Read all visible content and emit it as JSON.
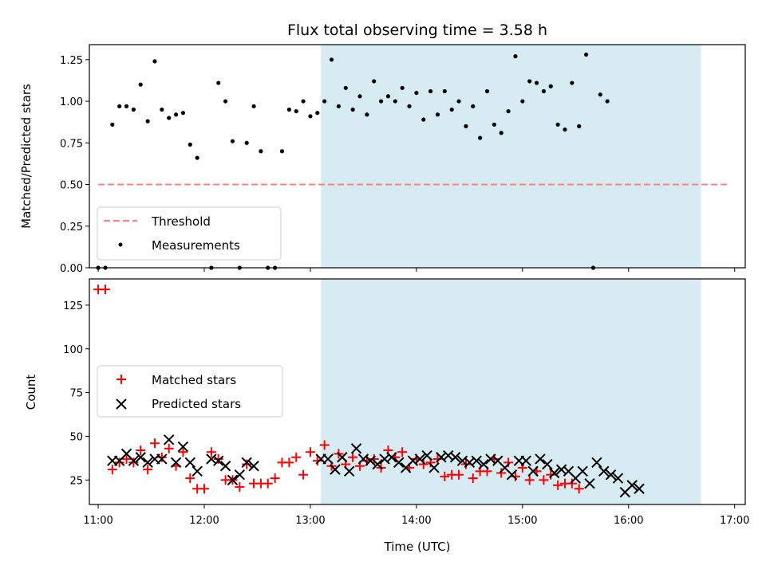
{
  "title": "Flux total observing time = 3.58 h",
  "xlabel": "Time (UTC)",
  "x_ticks": [
    "11:00",
    "12:00",
    "13:00",
    "14:00",
    "15:00",
    "16:00",
    "17:00"
  ],
  "colors": {
    "shade": "#add8e6",
    "threshold": "#ff7f7f",
    "measurement": "#000000",
    "matched": "#ff0000",
    "predicted": "#000000"
  },
  "chart_data": [
    {
      "type": "scatter",
      "panel": "top",
      "ylabel": "Matched/Predicted stars",
      "y_ticks": [
        "0.00",
        "0.25",
        "0.50",
        "0.75",
        "1.00",
        "1.25"
      ],
      "xlim": [
        "10:55",
        "17:06"
      ],
      "ylim": [
        0,
        1.34
      ],
      "shaded_span": [
        "13:06",
        "16:41"
      ],
      "threshold": {
        "name": "Threshold",
        "value": 0.5,
        "x_range": [
          "11:00",
          "16:56"
        ]
      },
      "legend": {
        "position": "lower-left",
        "entries": [
          "Threshold",
          "Measurements"
        ]
      },
      "series": [
        {
          "name": "Measurements",
          "points": [
            [
              "11:00",
              0.0
            ],
            [
              "11:04",
              0.0
            ],
            [
              "11:08",
              0.86
            ],
            [
              "11:12",
              0.97
            ],
            [
              "11:16",
              0.97
            ],
            [
              "11:20",
              0.95
            ],
            [
              "11:24",
              1.1
            ],
            [
              "11:28",
              0.88
            ],
            [
              "11:32",
              1.24
            ],
            [
              "11:36",
              0.95
            ],
            [
              "11:40",
              0.9
            ],
            [
              "11:44",
              0.92
            ],
            [
              "11:48",
              0.93
            ],
            [
              "11:52",
              0.74
            ],
            [
              "11:56",
              0.66
            ],
            [
              "12:04",
              0.0
            ],
            [
              "12:08",
              1.11
            ],
            [
              "12:12",
              1.0
            ],
            [
              "12:16",
              0.76
            ],
            [
              "12:20",
              0.0
            ],
            [
              "12:24",
              0.75
            ],
            [
              "12:28",
              0.97
            ],
            [
              "12:32",
              0.7
            ],
            [
              "12:36",
              0.0
            ],
            [
              "12:40",
              0.0
            ],
            [
              "12:44",
              0.7
            ],
            [
              "12:48",
              0.95
            ],
            [
              "12:52",
              0.94
            ],
            [
              "12:56",
              1.0
            ],
            [
              "13:00",
              0.91
            ],
            [
              "13:04",
              0.93
            ],
            [
              "13:08",
              1.0
            ],
            [
              "13:12",
              1.25
            ],
            [
              "13:16",
              0.97
            ],
            [
              "13:20",
              1.08
            ],
            [
              "13:24",
              0.95
            ],
            [
              "13:28",
              1.03
            ],
            [
              "13:32",
              0.92
            ],
            [
              "13:36",
              1.12
            ],
            [
              "13:40",
              1.0
            ],
            [
              "13:44",
              1.03
            ],
            [
              "13:48",
              1.0
            ],
            [
              "13:52",
              1.08
            ],
            [
              "13:56",
              0.97
            ],
            [
              "14:00",
              1.05
            ],
            [
              "14:04",
              0.89
            ],
            [
              "14:08",
              1.06
            ],
            [
              "14:12",
              0.92
            ],
            [
              "14:16",
              1.06
            ],
            [
              "14:20",
              0.95
            ],
            [
              "14:24",
              1.0
            ],
            [
              "14:28",
              0.85
            ],
            [
              "14:32",
              0.97
            ],
            [
              "14:36",
              0.78
            ],
            [
              "14:40",
              1.06
            ],
            [
              "14:44",
              0.86
            ],
            [
              "14:48",
              0.81
            ],
            [
              "14:52",
              0.94
            ],
            [
              "14:56",
              1.27
            ],
            [
              "15:00",
              1.0
            ],
            [
              "15:04",
              1.12
            ],
            [
              "15:08",
              1.11
            ],
            [
              "15:12",
              1.06
            ],
            [
              "15:16",
              1.09
            ],
            [
              "15:20",
              0.86
            ],
            [
              "15:24",
              0.83
            ],
            [
              "15:28",
              1.11
            ],
            [
              "15:32",
              0.85
            ],
            [
              "15:36",
              1.28
            ],
            [
              "15:40",
              0.0
            ],
            [
              "15:44",
              1.04
            ],
            [
              "15:48",
              1.0
            ]
          ]
        }
      ]
    },
    {
      "type": "scatter",
      "panel": "bottom",
      "ylabel": "Count",
      "y_ticks": [
        "25",
        "50",
        "75",
        "100",
        "125"
      ],
      "ylim": [
        11,
        140
      ],
      "legend": {
        "position": "center-left",
        "entries": [
          "Matched stars",
          "Predicted stars"
        ]
      },
      "series": [
        {
          "name": "Matched stars",
          "marker": "plus",
          "points": [
            [
              "11:00",
              134
            ],
            [
              "11:04",
              134
            ],
            [
              "11:08",
              31
            ],
            [
              "11:12",
              35
            ],
            [
              "11:16",
              37
            ],
            [
              "11:20",
              35
            ],
            [
              "11:24",
              42
            ],
            [
              "11:28",
              31
            ],
            [
              "11:32",
              46
            ],
            [
              "11:36",
              38
            ],
            [
              "11:40",
              43
            ],
            [
              "11:44",
              33
            ],
            [
              "11:48",
              41
            ],
            [
              "11:52",
              26
            ],
            [
              "11:56",
              20
            ],
            [
              "12:00",
              20
            ],
            [
              "12:04",
              41
            ],
            [
              "12:08",
              37
            ],
            [
              "12:12",
              25
            ],
            [
              "12:16",
              25
            ],
            [
              "12:20",
              21
            ],
            [
              "12:24",
              34
            ],
            [
              "12:28",
              23
            ],
            [
              "12:32",
              23
            ],
            [
              "12:36",
              23
            ],
            [
              "12:40",
              26
            ],
            [
              "12:44",
              35
            ],
            [
              "12:48",
              35
            ],
            [
              "12:52",
              38
            ],
            [
              "12:56",
              28
            ],
            [
              "13:00",
              41
            ],
            [
              "13:04",
              36
            ],
            [
              "13:08",
              45
            ],
            [
              "13:12",
              33
            ],
            [
              "13:16",
              40
            ],
            [
              "13:20",
              34
            ],
            [
              "13:24",
              38
            ],
            [
              "13:28",
              33
            ],
            [
              "13:32",
              36
            ],
            [
              "13:36",
              37
            ],
            [
              "13:40",
              32
            ],
            [
              "13:44",
              42
            ],
            [
              "13:48",
              38
            ],
            [
              "13:52",
              41
            ],
            [
              "13:56",
              32
            ],
            [
              "14:00",
              37
            ],
            [
              "14:04",
              34
            ],
            [
              "14:08",
              35
            ],
            [
              "14:12",
              37
            ],
            [
              "14:16",
              27
            ],
            [
              "14:20",
              28
            ],
            [
              "14:24",
              28
            ],
            [
              "14:28",
              34
            ],
            [
              "14:32",
              26
            ],
            [
              "14:36",
              30
            ],
            [
              "14:40",
              30
            ],
            [
              "14:44",
              37
            ],
            [
              "14:48",
              29
            ],
            [
              "14:52",
              35
            ],
            [
              "14:56",
              27
            ],
            [
              "15:00",
              32
            ],
            [
              "15:04",
              25
            ],
            [
              "15:08",
              30
            ],
            [
              "15:12",
              25
            ],
            [
              "15:16",
              28
            ],
            [
              "15:20",
              22
            ],
            [
              "15:24",
              23
            ],
            [
              "15:28",
              23
            ],
            [
              "15:32",
              20
            ]
          ]
        },
        {
          "name": "Predicted stars",
          "marker": "x",
          "points": [
            [
              "11:08",
              36
            ],
            [
              "11:12",
              36
            ],
            [
              "11:16",
              40
            ],
            [
              "11:20",
              36
            ],
            [
              "11:24",
              38
            ],
            [
              "11:28",
              35
            ],
            [
              "11:32",
              37
            ],
            [
              "11:36",
              37
            ],
            [
              "11:40",
              48
            ],
            [
              "11:44",
              35
            ],
            [
              "11:48",
              44
            ],
            [
              "11:52",
              35
            ],
            [
              "11:56",
              30
            ],
            [
              "12:04",
              37
            ],
            [
              "12:08",
              36
            ],
            [
              "12:12",
              33
            ],
            [
              "12:16",
              25
            ],
            [
              "12:20",
              28
            ],
            [
              "12:24",
              35
            ],
            [
              "12:28",
              33
            ],
            [
              "13:06",
              37
            ],
            [
              "13:10",
              37
            ],
            [
              "13:14",
              31
            ],
            [
              "13:18",
              38
            ],
            [
              "13:22",
              30
            ],
            [
              "13:26",
              43
            ],
            [
              "13:30",
              37
            ],
            [
              "13:34",
              36
            ],
            [
              "13:38",
              34
            ],
            [
              "13:42",
              37
            ],
            [
              "13:46",
              38
            ],
            [
              "13:50",
              35
            ],
            [
              "13:54",
              32
            ],
            [
              "13:58",
              36
            ],
            [
              "14:02",
              37
            ],
            [
              "14:06",
              39
            ],
            [
              "14:10",
              32
            ],
            [
              "14:14",
              38
            ],
            [
              "14:18",
              39
            ],
            [
              "14:22",
              38
            ],
            [
              "14:26",
              36
            ],
            [
              "14:30",
              35
            ],
            [
              "14:34",
              36
            ],
            [
              "14:38",
              34
            ],
            [
              "14:42",
              37
            ],
            [
              "14:46",
              36
            ],
            [
              "14:50",
              32
            ],
            [
              "14:54",
              28
            ],
            [
              "14:58",
              36
            ],
            [
              "15:02",
              36
            ],
            [
              "15:06",
              30
            ],
            [
              "15:10",
              37
            ],
            [
              "15:14",
              34
            ],
            [
              "15:18",
              29
            ],
            [
              "15:22",
              31
            ],
            [
              "15:26",
              30
            ],
            [
              "15:30",
              26
            ],
            [
              "15:34",
              30
            ],
            [
              "15:38",
              23
            ],
            [
              "15:42",
              35
            ],
            [
              "15:46",
              30
            ],
            [
              "15:50",
              28
            ],
            [
              "15:54",
              26
            ],
            [
              "15:58",
              18
            ],
            [
              "16:02",
              22
            ],
            [
              "16:06",
              20
            ]
          ]
        }
      ]
    }
  ]
}
